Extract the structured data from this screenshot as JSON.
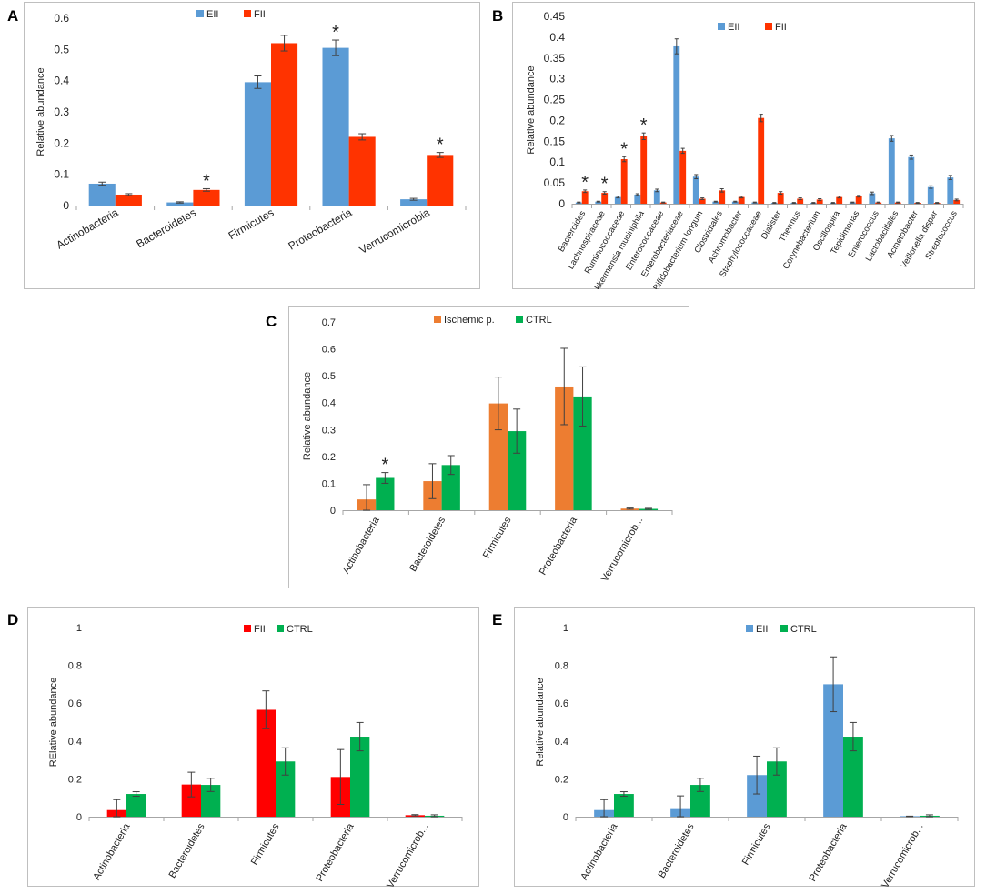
{
  "figure": {
    "title": ""
  },
  "panels": [
    {
      "letter": "A"
    },
    {
      "letter": "B"
    },
    {
      "letter": "C"
    },
    {
      "letter": "D"
    },
    {
      "letter": "E"
    }
  ],
  "colors": {
    "EII": "#5b9bd5",
    "FII": "#ff3300",
    "Ischemic": "#ed7d31",
    "CTRL": "#00b050",
    "error_bar": "#404040"
  },
  "chart_data": [
    {
      "id": "A",
      "type": "bar",
      "ylabel": "Relative abundance",
      "ylim": [
        0,
        0.6
      ],
      "yticks": [
        "0",
        "0.1",
        "0.2",
        "0.3",
        "0.4",
        "0.5",
        "0.6"
      ],
      "ystep": 0.1,
      "categories": [
        "Actinobacteria",
        "Bacteroidetes",
        "Firmicutes",
        "Proteobacteria",
        "Verrucomicrobia"
      ],
      "series": [
        {
          "name": "EII",
          "color": "#5b9bd5",
          "values": [
            0.07,
            0.01,
            0.395,
            0.505,
            0.02
          ],
          "errors": [
            0.005,
            0.002,
            0.02,
            0.025,
            0.003
          ]
        },
        {
          "name": "FII",
          "color": "#ff3300",
          "values": [
            0.035,
            0.05,
            0.52,
            0.22,
            0.162
          ],
          "errors": [
            0.003,
            0.004,
            0.025,
            0.01,
            0.008
          ]
        }
      ],
      "significance": [
        {
          "index": 1,
          "series": 1,
          "label": "*"
        },
        {
          "index": 3,
          "series": 0,
          "label": "*"
        },
        {
          "index": 4,
          "series": 1,
          "label": "*"
        }
      ]
    },
    {
      "id": "B",
      "type": "bar",
      "ylabel": "Relative abundance",
      "ylim": [
        0,
        0.45
      ],
      "yticks": [
        "0",
        "0.05",
        "0.1",
        "0.15",
        "0.2",
        "0.25",
        "0.3",
        "0.35",
        "0.4",
        "0.45"
      ],
      "ystep": 0.05,
      "categories": [
        "Bacteroides",
        "Lachnospiraceae",
        "Ruminococcaceae",
        "Akkermansia muciniphila",
        "Enterococcaceae",
        "Enterobacteriaceae",
        "Bifidobacterium longum",
        "Clostridiales",
        "Achromobacter",
        "Staphylococcaceae",
        "Dialister",
        "Thermus",
        "Corynebacterium",
        "Oscillospira",
        "Tepidimonas",
        "Enterococcus",
        "Lactobacillales",
        "Acinetobacter",
        "Veillonella dispar",
        "Streptococcus"
      ],
      "series": [
        {
          "name": "EII",
          "color": "#5b9bd5",
          "values": [
            0.003,
            0.005,
            0.016,
            0.022,
            0.032,
            0.378,
            0.065,
            0.005,
            0.005,
            0.003,
            0.002,
            0.002,
            0.002,
            0.002,
            0.003,
            0.025,
            0.157,
            0.112,
            0.04,
            0.063
          ],
          "errors": [
            0.001,
            0.001,
            0.002,
            0.002,
            0.003,
            0.018,
            0.005,
            0.001,
            0.001,
            0.001,
            0.001,
            0.001,
            0.001,
            0.001,
            0.001,
            0.003,
            0.007,
            0.005,
            0.003,
            0.005
          ]
        },
        {
          "name": "FII",
          "color": "#ff3300",
          "values": [
            0.03,
            0.026,
            0.107,
            0.162,
            0.003,
            0.127,
            0.012,
            0.032,
            0.016,
            0.206,
            0.026,
            0.012,
            0.01,
            0.016,
            0.018,
            0.003,
            0.003,
            0.002,
            0.002,
            0.009
          ],
          "errors": [
            0.003,
            0.003,
            0.006,
            0.008,
            0.001,
            0.006,
            0.002,
            0.004,
            0.002,
            0.009,
            0.003,
            0.002,
            0.002,
            0.002,
            0.002,
            0.001,
            0.001,
            0.001,
            0.001,
            0.002
          ]
        }
      ],
      "significance": [
        {
          "index": 0,
          "series": 1,
          "label": "*"
        },
        {
          "index": 1,
          "series": 1,
          "label": "*"
        },
        {
          "index": 2,
          "series": 1,
          "label": "*"
        },
        {
          "index": 3,
          "series": 1,
          "label": "*"
        }
      ]
    },
    {
      "id": "C",
      "type": "bar",
      "ylabel": "Relative abundance",
      "ylim": [
        0,
        0.7
      ],
      "yticks": [
        "0",
        "0.1",
        "0.2",
        "0.3",
        "0.4",
        "0.5",
        "0.6",
        "0.7"
      ],
      "ystep": 0.1,
      "categories": [
        "Actinobacteria",
        "Bacteroidetes",
        "Firmicutes",
        "Proteobacteria",
        "Verrucomicrob..."
      ],
      "series": [
        {
          "name": "Ischemic p.",
          "color": "#ed7d31",
          "values": [
            0.04,
            0.108,
            0.397,
            0.46,
            0.006
          ],
          "errors": [
            0.055,
            0.065,
            0.098,
            0.142,
            0.002
          ]
        },
        {
          "name": "CTRL",
          "color": "#00b050",
          "values": [
            0.12,
            0.168,
            0.294,
            0.423,
            0.005
          ],
          "errors": [
            0.02,
            0.035,
            0.082,
            0.11,
            0.002
          ]
        }
      ],
      "significance": [
        {
          "index": 0,
          "series": 1,
          "label": "*"
        }
      ]
    },
    {
      "id": "D",
      "type": "bar",
      "ylabel": "RElative abundance",
      "ylim": [
        0,
        1
      ],
      "yticks": [
        "0",
        "0.2",
        "0.4",
        "0.6",
        "0.8",
        "1"
      ],
      "ystep": 0.2,
      "categories": [
        "Actinobacteria",
        "Bacteroidetes",
        "Firmicutes",
        "Proteobacteria",
        "Verrucomicrob..."
      ],
      "series": [
        {
          "name": "FII",
          "color": "#ff0000",
          "values": [
            0.035,
            0.17,
            0.565,
            0.21,
            0.008
          ],
          "errors": [
            0.055,
            0.065,
            0.1,
            0.145,
            0.003
          ]
        },
        {
          "name": "CTRL",
          "color": "#00b050",
          "values": [
            0.12,
            0.168,
            0.292,
            0.423,
            0.005
          ],
          "errors": [
            0.012,
            0.035,
            0.072,
            0.075,
            0.005
          ]
        }
      ],
      "significance": []
    },
    {
      "id": "E",
      "type": "bar",
      "ylabel": "Relative abundance",
      "ylim": [
        0,
        1
      ],
      "yticks": [
        "0",
        "0.2",
        "0.4",
        "0.6",
        "0.8",
        "1"
      ],
      "ystep": 0.2,
      "categories": [
        "Actinobacteria",
        "Bacteroidetes",
        "Firmicutes",
        "Proteobacteria",
        "Verrucomicrob..."
      ],
      "series": [
        {
          "name": "EII",
          "color": "#5b9bd5",
          "values": [
            0.035,
            0.045,
            0.22,
            0.7,
            0.002
          ],
          "errors": [
            0.055,
            0.065,
            0.1,
            0.145,
            0.001
          ]
        },
        {
          "name": "CTRL",
          "color": "#00b050",
          "values": [
            0.12,
            0.168,
            0.292,
            0.423,
            0.005
          ],
          "errors": [
            0.012,
            0.035,
            0.072,
            0.075,
            0.005
          ]
        }
      ],
      "significance": []
    }
  ]
}
